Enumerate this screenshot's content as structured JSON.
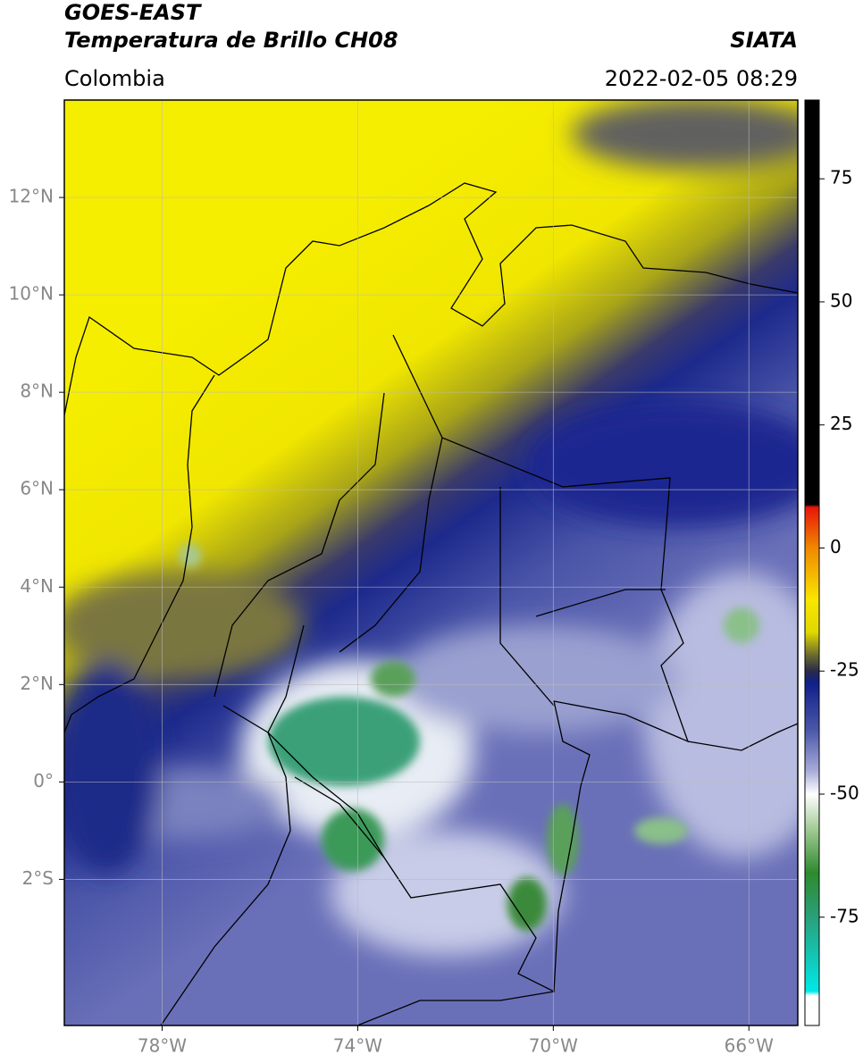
{
  "header": {
    "title": "GOES-EAST",
    "subtitle": "Temperatura de Brillo CH08",
    "region": "Colombia",
    "source": "SIATA",
    "datetime": "2022-02-05 08:29"
  },
  "map": {
    "lon_range": [
      -80,
      -65
    ],
    "lat_range": [
      -5,
      14
    ],
    "grid": true,
    "lat_ticks": [
      {
        "value": 12,
        "label": "12°N"
      },
      {
        "value": 10,
        "label": "10°N"
      },
      {
        "value": 8,
        "label": "8°N"
      },
      {
        "value": 6,
        "label": "6°N"
      },
      {
        "value": 4,
        "label": "4°N"
      },
      {
        "value": 2,
        "label": "2°N"
      },
      {
        "value": 0,
        "label": "0°"
      },
      {
        "value": -2,
        "label": "2°S"
      }
    ],
    "lon_ticks": [
      {
        "value": -78,
        "label": "78°W"
      },
      {
        "value": -74,
        "label": "74°W"
      },
      {
        "value": -70,
        "label": "70°W"
      },
      {
        "value": -66,
        "label": "66°W"
      }
    ]
  },
  "colorbar": {
    "lim": [
      -97,
      91
    ],
    "ticks": [
      75,
      50,
      25,
      0,
      -25,
      -50,
      -75
    ]
  }
}
